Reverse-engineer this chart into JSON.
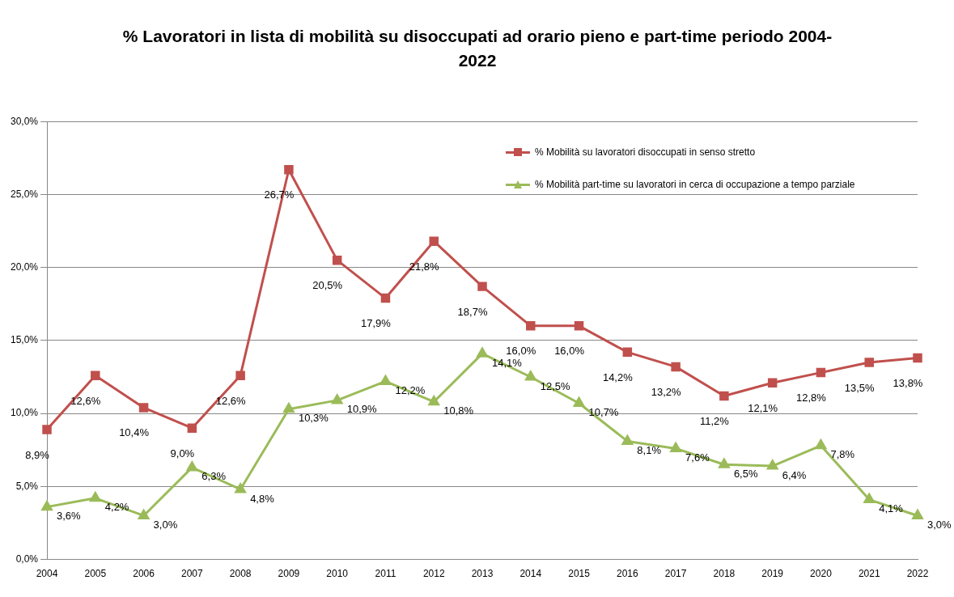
{
  "chart_data": {
    "type": "line",
    "title": "% Lavoratori in lista di mobilità su disoccupati ad orario pieno e part-time  periodo 2004-2022",
    "categories": [
      "2004",
      "2005",
      "2006",
      "2007",
      "2008",
      "2009",
      "2010",
      "2011",
      "2012",
      "2013",
      "2014",
      "2015",
      "2016",
      "2017",
      "2018",
      "2019",
      "2020",
      "2021",
      "2022"
    ],
    "series": [
      {
        "name": "% Mobilità su lavoratori disoccupati in senso stretto",
        "color": "#c0504d",
        "marker": "square",
        "values": [
          8.9,
          12.6,
          10.4,
          9.0,
          12.6,
          26.7,
          20.5,
          17.9,
          21.8,
          18.7,
          16.0,
          16.0,
          14.2,
          13.2,
          11.2,
          12.1,
          12.8,
          13.5,
          13.8
        ],
        "value_labels": [
          "8,9%",
          "12,6%",
          "10,4%",
          "9,0%",
          "12,6%",
          "26,7%",
          "20,5%",
          "17,9%",
          "21,8%",
          "18,7%",
          "16,0%",
          "16,0%",
          "14,2%",
          "13,2%",
          "11,2%",
          "12,1%",
          "12,8%",
          "13,5%",
          "13,8%"
        ]
      },
      {
        "name": "% Mobilità part-time su lavoratori in cerca di occupazione a tempo parziale",
        "color": "#9bbb59",
        "marker": "triangle",
        "values": [
          3.6,
          4.2,
          3.0,
          6.3,
          4.8,
          10.3,
          10.9,
          12.2,
          10.8,
          14.1,
          12.5,
          10.7,
          8.1,
          7.6,
          6.5,
          6.4,
          7.8,
          4.1,
          3.0
        ],
        "value_labels": [
          "3,6%",
          "4,2%",
          "3,0%",
          "6,3%",
          "4,8%",
          "10,3%",
          "10,9%",
          "12,2%",
          "10,8%",
          "14,1%",
          "12,5%",
          "10,7%",
          "8,1%",
          "7,6%",
          "6,5%",
          "6,4%",
          "7,8%",
          "4,1%",
          "3,0%"
        ]
      }
    ],
    "ylim": [
      0,
      30
    ],
    "yticks": [
      {
        "value": 0,
        "label": "0,0%"
      },
      {
        "value": 5,
        "label": "5,0%"
      },
      {
        "value": 10,
        "label": "10,0%"
      },
      {
        "value": 15,
        "label": "15,0%"
      },
      {
        "value": 20,
        "label": "20,0%"
      },
      {
        "value": 25,
        "label": "25,0%"
      },
      {
        "value": 30,
        "label": "30,0%"
      }
    ],
    "grid": "y",
    "legend": "top right",
    "line_style": "solid"
  }
}
